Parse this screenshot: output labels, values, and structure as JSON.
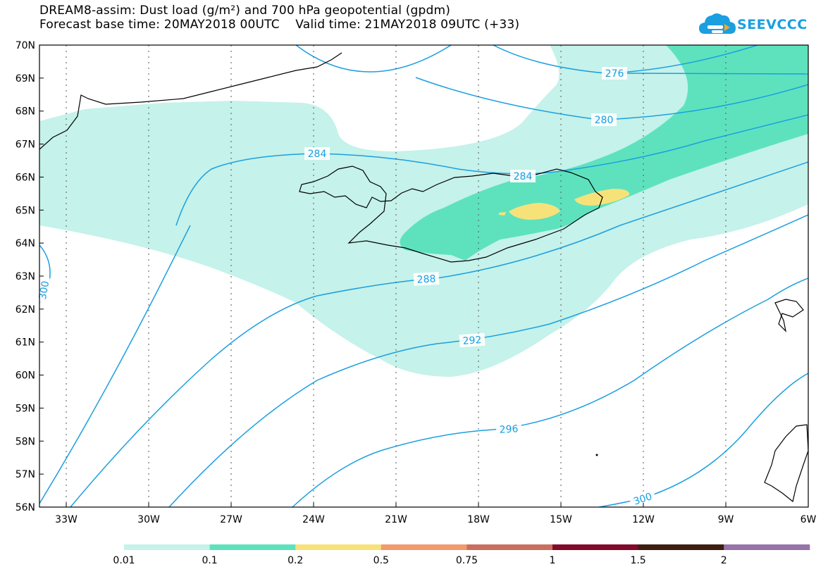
{
  "title_line1": "DREAM8-assim: Dust load (g/m²) and 700 hPa geopotential (gpdm)",
  "title_line2": "Forecast base time: 20MAY2018 00UTC    Valid time: 21MAY2018 09UTC (+33)",
  "logo_text": "SEEVCCC",
  "lat_labels": [
    "70N",
    "69N",
    "68N",
    "67N",
    "66N",
    "65N",
    "64N",
    "63N",
    "62N",
    "61N",
    "60N",
    "59N",
    "58N",
    "57N",
    "56N"
  ],
  "lon_labels": [
    "33W",
    "30W",
    "27W",
    "24W",
    "21W",
    "18W",
    "15W",
    "12W",
    "9W",
    "6W"
  ],
  "contour_labels": [
    "276",
    "280",
    "284",
    "284",
    "288",
    "292",
    "296",
    "300",
    "300"
  ],
  "colorbar": {
    "ticks": [
      "0.01",
      "0.1",
      "0.2",
      "0.5",
      "0.75",
      "1",
      "1.5",
      "2"
    ],
    "colors": [
      "#c5f2ea",
      "#5ee2be",
      "#f7e27a",
      "#f09a6e",
      "#c96f60",
      "#820a2a",
      "#3d1e10",
      "#9673a8"
    ]
  },
  "dust_colors": {
    "low": "#c5f2ea",
    "mid": "#5ee2be",
    "high": "#f7e27a"
  },
  "contour_color": "#1a9fe0"
}
